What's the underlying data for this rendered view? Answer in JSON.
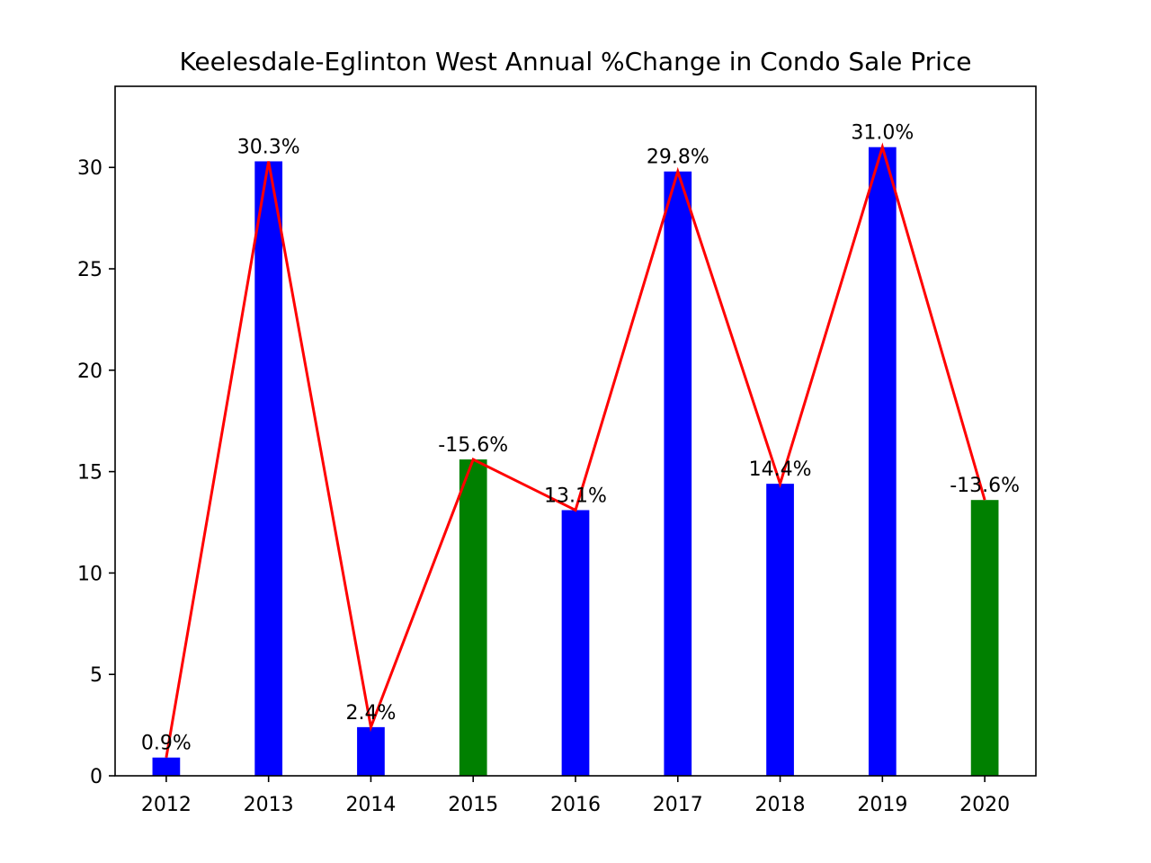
{
  "chart_data": {
    "type": "bar",
    "title": "Keelesdale-Eglinton West Annual %Change in Condo Sale Price",
    "xlabel": "",
    "ylabel": "",
    "categories": [
      "2012",
      "2013",
      "2014",
      "2015",
      "2016",
      "2017",
      "2018",
      "2019",
      "2020"
    ],
    "values": [
      0.9,
      30.3,
      2.4,
      15.6,
      13.1,
      29.8,
      14.4,
      31.0,
      13.6
    ],
    "bar_labels": [
      "0.9%",
      "30.3%",
      "2.4%",
      "-15.6%",
      "13.1%",
      "29.8%",
      "14.4%",
      "31.0%",
      "-13.6%"
    ],
    "bar_colors": [
      "#0000ff",
      "#0000ff",
      "#0000ff",
      "#008000",
      "#0000ff",
      "#0000ff",
      "#0000ff",
      "#0000ff",
      "#008000"
    ],
    "line_overlay": {
      "values": [
        0.9,
        30.3,
        2.4,
        15.6,
        13.1,
        29.8,
        14.4,
        31.0,
        13.6
      ],
      "color": "#ff0000"
    },
    "ylim": [
      0,
      34
    ],
    "yticks": [
      0,
      5,
      10,
      15,
      20,
      25,
      30
    ],
    "grid": false,
    "legend": "none"
  }
}
